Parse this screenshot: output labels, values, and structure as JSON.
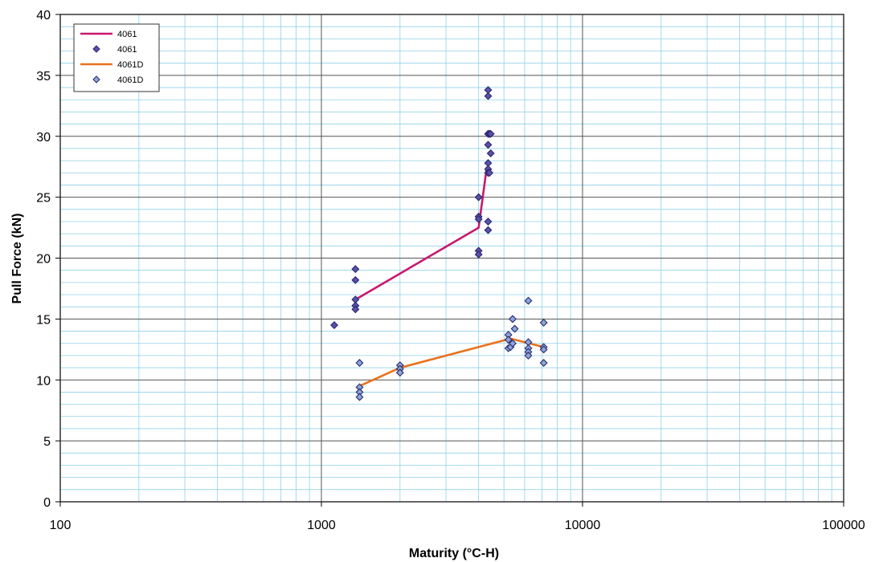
{
  "chart_data": {
    "type": "scatter",
    "title": "",
    "xlabel": "Maturity (°C-H)",
    "ylabel": "Pull Force (kN)",
    "x_scale": "log",
    "xlim": [
      100,
      100000
    ],
    "ylim": [
      0,
      40
    ],
    "x_ticks": [
      100,
      1000,
      10000,
      100000
    ],
    "x_tick_labels": [
      "100",
      "1000",
      "10000",
      "100000"
    ],
    "y_ticks": [
      0,
      5,
      10,
      15,
      20,
      25,
      30,
      35,
      40
    ],
    "y_tick_labels": [
      "0",
      "5",
      "10",
      "15",
      "20",
      "25",
      "30",
      "35",
      "40"
    ],
    "y_minor_step": 1,
    "grid": true,
    "legend_position": "top-left",
    "colors": {
      "grid_major": "#555555",
      "grid_minor": "#8fd0e8",
      "line_4061": "#c8186e",
      "line_4061D": "#e8721e",
      "marker_4061_fill": "#5a50a8",
      "marker_4061D_fill": "#8aa6d6",
      "marker_edge": "#2b2870"
    },
    "series": [
      {
        "name": "4061",
        "kind": "line",
        "color": "#c8186e",
        "x": [
          1350,
          4000,
          4300
        ],
        "y": [
          16.6,
          22.5,
          27.5
        ]
      },
      {
        "name": "4061",
        "kind": "scatter",
        "color": "#5a50a8",
        "x": [
          1120,
          1350,
          1350,
          1350,
          1350,
          1350,
          4000,
          4000,
          4000,
          4000,
          4000,
          4350,
          4350,
          4350,
          4350,
          4350,
          4350,
          4350,
          4350,
          4350,
          4400,
          4400,
          4450,
          4450
        ],
        "y": [
          14.5,
          19.1,
          18.2,
          16.6,
          16.1,
          15.8,
          25.0,
          23.4,
          23.2,
          20.6,
          20.3,
          33.8,
          33.3,
          30.2,
          29.3,
          27.8,
          27.3,
          27.0,
          23.0,
          22.3,
          30.2,
          27.0,
          28.6,
          30.2
        ]
      },
      {
        "name": "4061D",
        "kind": "line",
        "color": "#e8721e",
        "x": [
          1400,
          2000,
          5300,
          7100
        ],
        "y": [
          9.5,
          11.0,
          13.4,
          12.7
        ]
      },
      {
        "name": "4061D",
        "kind": "scatter",
        "color": "#8aa6d6",
        "x": [
          1400,
          1400,
          1400,
          1400,
          2000,
          2000,
          2000,
          5200,
          5200,
          5200,
          5300,
          5400,
          5400,
          5500,
          6200,
          6200,
          6200,
          6200,
          6200,
          7100,
          7100,
          7100,
          7100
        ],
        "y": [
          11.4,
          9.4,
          9.0,
          8.6,
          11.2,
          10.9,
          10.6,
          13.7,
          13.3,
          12.6,
          12.7,
          13.0,
          15.0,
          14.2,
          16.5,
          13.1,
          12.6,
          12.3,
          12.0,
          14.7,
          12.7,
          12.5,
          11.4
        ]
      }
    ],
    "legend": [
      {
        "label": "4061",
        "kind": "line",
        "series": 0
      },
      {
        "label": "4061",
        "kind": "marker",
        "series": 1
      },
      {
        "label": "4061D",
        "kind": "line",
        "series": 2
      },
      {
        "label": "4061D",
        "kind": "marker",
        "series": 3
      }
    ]
  }
}
